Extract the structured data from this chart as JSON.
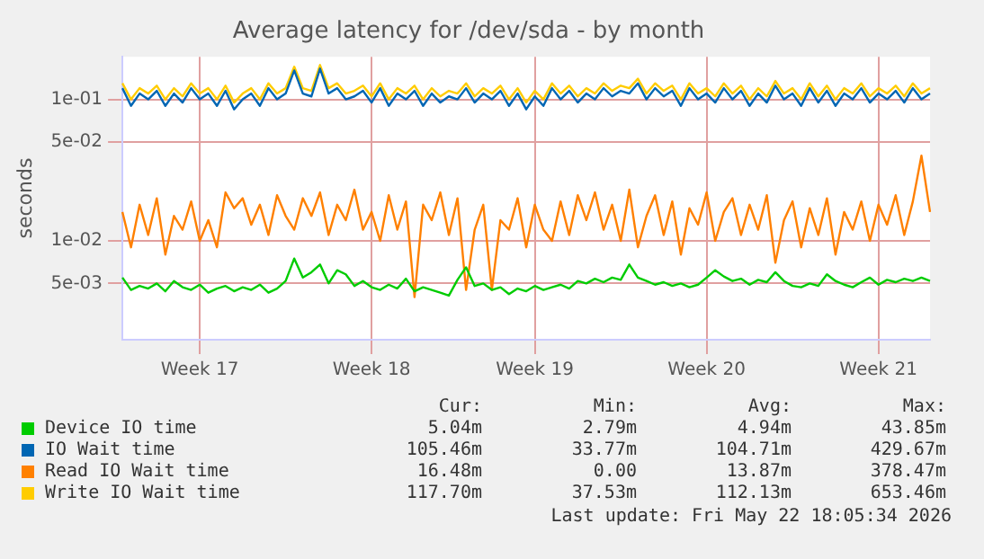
{
  "chart_data": {
    "type": "line",
    "title": "Average latency for /dev/sda - by month",
    "ylabel": "seconds",
    "log": "y",
    "grid": true,
    "legend": "bottom",
    "marker": "none",
    "line_style": "solid",
    "ylim": [
      0.002,
      0.2
    ],
    "yticks": [
      {
        "value": 0.005,
        "label": "5e-03"
      },
      {
        "value": 0.01,
        "label": "1e-02"
      },
      {
        "value": 0.05,
        "label": "5e-02"
      },
      {
        "value": 0.1,
        "label": "1e-01"
      }
    ],
    "categories": [
      null,
      null,
      null,
      null,
      null,
      null,
      null,
      null,
      null,
      "Week 17",
      null,
      null,
      null,
      null,
      null,
      null,
      null,
      null,
      null,
      null,
      null,
      null,
      null,
      null,
      null,
      null,
      null,
      null,
      null,
      "Week 18",
      null,
      null,
      null,
      null,
      null,
      null,
      null,
      null,
      null,
      null,
      null,
      null,
      null,
      null,
      null,
      null,
      null,
      null,
      "Week 19",
      null,
      null,
      null,
      null,
      null,
      null,
      null,
      null,
      null,
      null,
      null,
      null,
      null,
      null,
      null,
      null,
      null,
      null,
      null,
      "Week 20",
      null,
      null,
      null,
      null,
      null,
      null,
      null,
      null,
      null,
      null,
      null,
      null,
      null,
      null,
      null,
      null,
      null,
      null,
      null,
      "Week 21",
      null,
      null,
      null,
      null,
      null,
      null
    ],
    "series": [
      {
        "name": "Device IO time",
        "color": "#00cc00",
        "values": [
          0.0055,
          0.0045,
          0.0048,
          0.0046,
          0.005,
          0.0044,
          0.0052,
          0.0047,
          0.0045,
          0.0049,
          0.0043,
          0.0046,
          0.0048,
          0.0044,
          0.0047,
          0.0045,
          0.0049,
          0.0043,
          0.0046,
          0.0052,
          0.0075,
          0.0055,
          0.006,
          0.0068,
          0.005,
          0.0062,
          0.0058,
          0.0048,
          0.0052,
          0.0047,
          0.0045,
          0.0049,
          0.0046,
          0.0054,
          0.0044,
          0.0047,
          0.0045,
          0.0043,
          0.0041,
          0.0053,
          0.0065,
          0.0048,
          0.005,
          0.0045,
          0.0047,
          0.0042,
          0.0046,
          0.0044,
          0.0048,
          0.0045,
          0.0047,
          0.0049,
          0.0046,
          0.0052,
          0.005,
          0.0054,
          0.0051,
          0.0055,
          0.0053,
          0.0068,
          0.0055,
          0.0052,
          0.0049,
          0.0051,
          0.0048,
          0.005,
          0.0047,
          0.0049,
          0.0055,
          0.0062,
          0.0056,
          0.0052,
          0.0054,
          0.0049,
          0.0053,
          0.0051,
          0.006,
          0.0052,
          0.0048,
          0.0047,
          0.005,
          0.0048,
          0.0058,
          0.0052,
          0.0049,
          0.0047,
          0.0051,
          0.0055,
          0.0049,
          0.0053,
          0.0051,
          0.0054,
          0.0052,
          0.0055,
          0.0052
        ]
      },
      {
        "name": "IO Wait time",
        "color": "#0066b3",
        "values": [
          0.12,
          0.09,
          0.11,
          0.1,
          0.115,
          0.09,
          0.11,
          0.095,
          0.12,
          0.1,
          0.11,
          0.09,
          0.115,
          0.085,
          0.1,
          0.11,
          0.09,
          0.12,
          0.1,
          0.11,
          0.16,
          0.11,
          0.105,
          0.165,
          0.11,
          0.12,
          0.1,
          0.105,
          0.115,
          0.095,
          0.12,
          0.09,
          0.11,
          0.1,
          0.115,
          0.09,
          0.11,
          0.095,
          0.105,
          0.1,
          0.12,
          0.095,
          0.11,
          0.1,
          0.115,
          0.09,
          0.11,
          0.085,
          0.105,
          0.09,
          0.12,
          0.1,
          0.115,
          0.095,
          0.11,
          0.1,
          0.12,
          0.105,
          0.115,
          0.11,
          0.13,
          0.1,
          0.12,
          0.105,
          0.115,
          0.09,
          0.12,
          0.1,
          0.11,
          0.095,
          0.12,
          0.1,
          0.115,
          0.09,
          0.11,
          0.095,
          0.125,
          0.1,
          0.11,
          0.09,
          0.12,
          0.095,
          0.115,
          0.09,
          0.11,
          0.1,
          0.12,
          0.095,
          0.11,
          0.1,
          0.115,
          0.095,
          0.12,
          0.1,
          0.11
        ]
      },
      {
        "name": "Read IO Wait time",
        "color": "#ff8000",
        "values": [
          0.016,
          0.009,
          0.018,
          0.011,
          0.02,
          0.008,
          0.015,
          0.012,
          0.019,
          0.01,
          0.014,
          0.009,
          0.022,
          0.017,
          0.02,
          0.013,
          0.018,
          0.011,
          0.021,
          0.015,
          0.012,
          0.02,
          0.015,
          0.022,
          0.011,
          0.018,
          0.014,
          0.023,
          0.012,
          0.016,
          0.01,
          0.021,
          0.012,
          0.019,
          0.004,
          0.018,
          0.014,
          0.022,
          0.011,
          0.02,
          0.0045,
          0.012,
          0.018,
          0.0045,
          0.014,
          0.012,
          0.02,
          0.009,
          0.018,
          0.012,
          0.01,
          0.019,
          0.011,
          0.021,
          0.014,
          0.022,
          0.012,
          0.018,
          0.01,
          0.023,
          0.009,
          0.015,
          0.021,
          0.011,
          0.019,
          0.008,
          0.017,
          0.013,
          0.022,
          0.01,
          0.016,
          0.02,
          0.011,
          0.018,
          0.012,
          0.021,
          0.007,
          0.014,
          0.019,
          0.009,
          0.017,
          0.011,
          0.02,
          0.008,
          0.016,
          0.012,
          0.019,
          0.01,
          0.018,
          0.013,
          0.021,
          0.011,
          0.019,
          0.04,
          0.016
        ]
      },
      {
        "name": "Write IO Wait time",
        "color": "#ffcc00",
        "values": [
          0.13,
          0.1,
          0.12,
          0.11,
          0.125,
          0.1,
          0.12,
          0.105,
          0.13,
          0.11,
          0.12,
          0.1,
          0.125,
          0.095,
          0.11,
          0.12,
          0.1,
          0.13,
          0.11,
          0.12,
          0.17,
          0.12,
          0.115,
          0.175,
          0.12,
          0.13,
          0.11,
          0.115,
          0.125,
          0.105,
          0.13,
          0.1,
          0.12,
          0.11,
          0.125,
          0.1,
          0.12,
          0.105,
          0.115,
          0.11,
          0.13,
          0.105,
          0.12,
          0.11,
          0.125,
          0.1,
          0.12,
          0.095,
          0.115,
          0.1,
          0.13,
          0.11,
          0.125,
          0.105,
          0.12,
          0.11,
          0.13,
          0.115,
          0.125,
          0.12,
          0.14,
          0.11,
          0.13,
          0.115,
          0.125,
          0.1,
          0.13,
          0.11,
          0.12,
          0.105,
          0.13,
          0.11,
          0.125,
          0.1,
          0.12,
          0.105,
          0.135,
          0.11,
          0.12,
          0.1,
          0.13,
          0.105,
          0.125,
          0.1,
          0.12,
          0.11,
          0.13,
          0.105,
          0.12,
          0.11,
          0.125,
          0.105,
          0.13,
          0.11,
          0.12
        ]
      }
    ],
    "annotations": [
      "Cur:",
      "Min:",
      "Avg:",
      "Max:",
      "5.04m",
      "2.79m",
      "4.94m",
      "43.85m",
      "105.46m",
      "33.77m",
      "104.71m",
      "429.67m",
      "16.48m",
      "0.00",
      "13.87m",
      "378.47m",
      "117.70m",
      "37.53m",
      "112.13m",
      "653.46m",
      "Last update: Fri May 22 18:05:34 2026"
    ]
  }
}
